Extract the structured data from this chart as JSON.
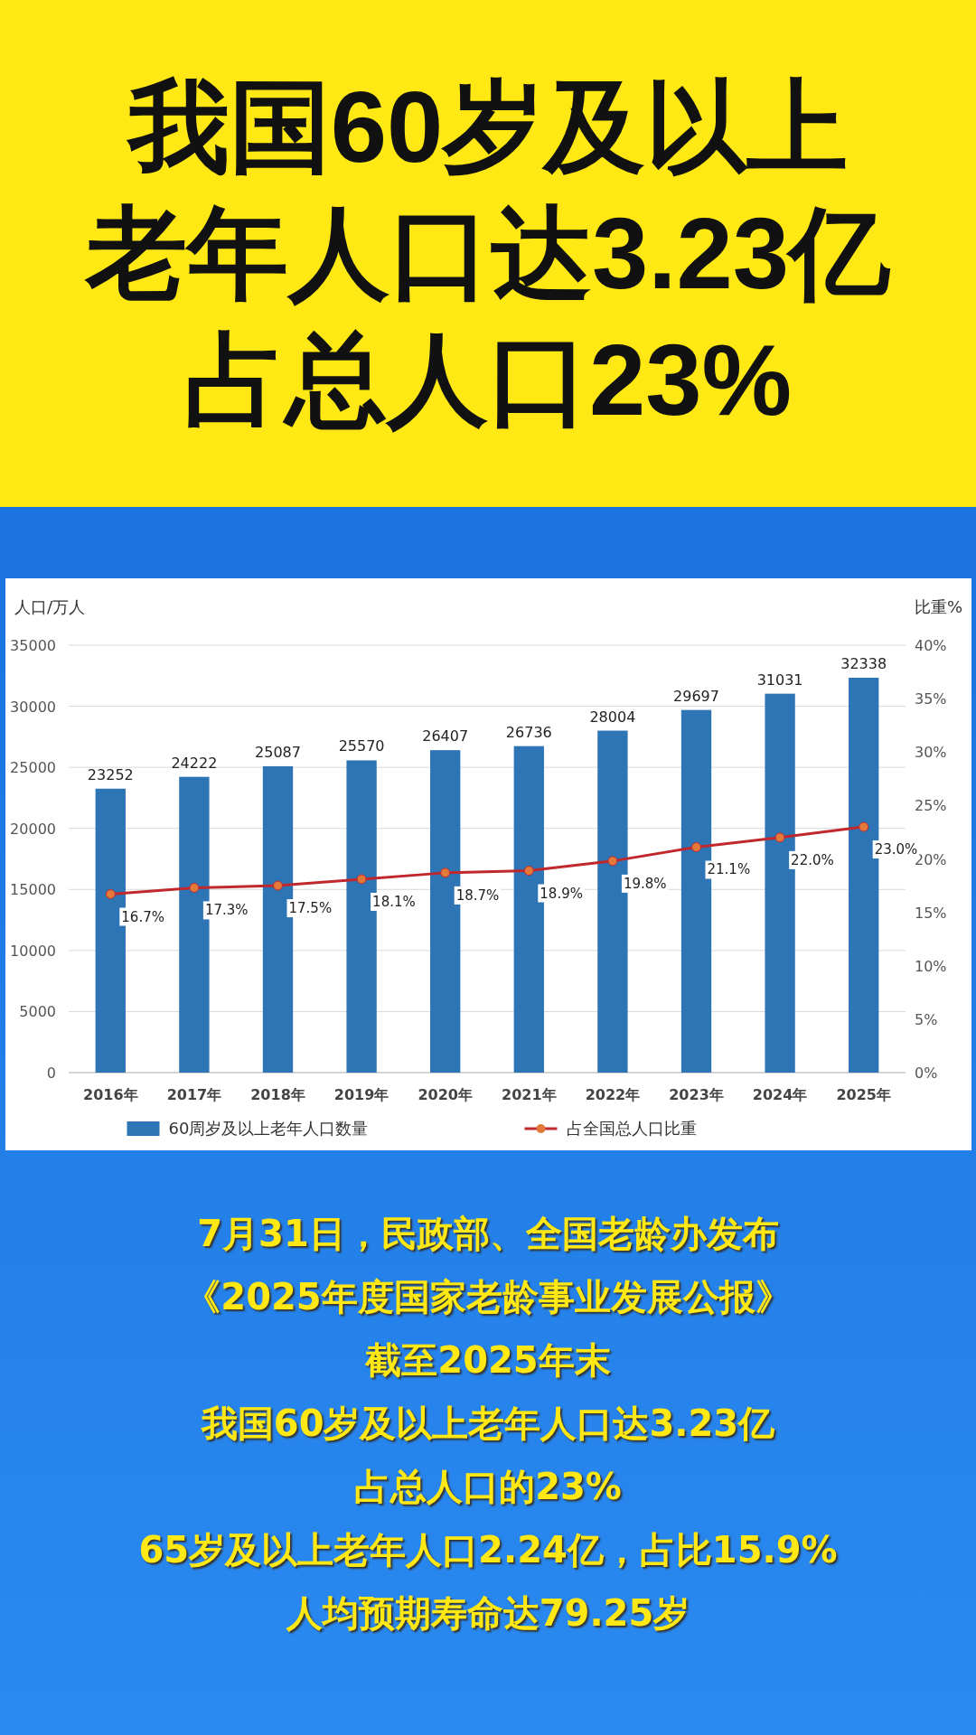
{
  "chart_data": {
    "type": "bar",
    "title": "我国60岁及以上老年人口达3.23亿占总人口23%",
    "ylabel": "人口/万人",
    "y2label": "比重%",
    "categories": [
      "2016年",
      "2017年",
      "2018年",
      "2019年",
      "2020年",
      "2021年",
      "2022年",
      "2023年",
      "2024年",
      "2025年"
    ],
    "series": [
      {
        "name": "60周岁及以上老年人口数量",
        "color": "#2e75b6",
        "values": [
          23252,
          24222,
          25087,
          25570,
          26407,
          26736,
          28004,
          29697,
          31031,
          32338
        ],
        "value_labels": [
          "23252",
          "24222",
          "25087",
          "25570",
          "26407",
          "26736",
          "28004",
          "29697",
          "31031",
          "32338"
        ]
      },
      {
        "name": "占全国总人口比重",
        "type": "line",
        "axis": "y2",
        "color": "#c0282d",
        "marker": "circle",
        "values": [
          16.7,
          17.3,
          17.5,
          18.1,
          18.7,
          18.9,
          19.8,
          21.1,
          22.0,
          23.0
        ],
        "value_labels": [
          "16.7%",
          "17.3%",
          "17.5%",
          "18.1%",
          "18.7%",
          "18.9%",
          "19.8%",
          "21.1%",
          "22.0%",
          "23.0%"
        ]
      }
    ],
    "ylim": [
      0,
      35000
    ],
    "yticks": [
      0,
      5000,
      10000,
      15000,
      20000,
      25000,
      30000,
      35000
    ],
    "y2lim": [
      0,
      40
    ],
    "y2ticks": [
      {
        "value": 0,
        "label": "0%"
      },
      {
        "value": 5,
        "label": "5%"
      },
      {
        "value": 10,
        "label": "10%"
      },
      {
        "value": 15,
        "label": "15%"
      },
      {
        "value": 20,
        "label": "20%"
      },
      {
        "value": 25,
        "label": "25%"
      },
      {
        "value": 30,
        "label": "30%"
      },
      {
        "value": 35,
        "label": "35%"
      },
      {
        "value": 40,
        "label": "40%"
      }
    ],
    "grid": "y",
    "legend": "bottom",
    "annotations": [
      "7月31日，民政部、全国老龄办发布",
      "《2025年度国家老龄事业发展公报》",
      "截至2025年末",
      "我国60岁及以上老年人口达3.23亿",
      "占总人口的23%",
      "65岁及以上老年人口2.24亿，占比15.9%",
      "人均预期寿命达79.25岁"
    ]
  }
}
